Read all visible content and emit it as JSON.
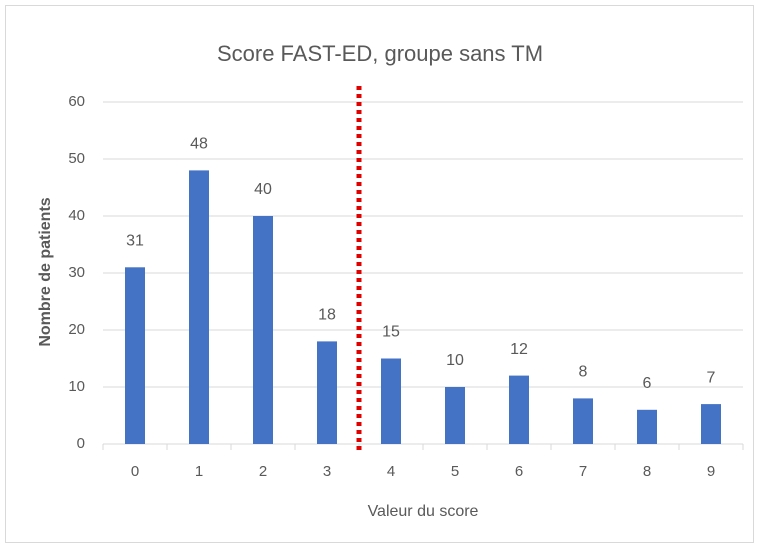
{
  "chart_data": {
    "type": "bar",
    "title": "Score FAST-ED, groupe sans TM",
    "x_label": "Valeur du score",
    "y_label": "Nombre de patients",
    "categories": [
      "0",
      "1",
      "2",
      "3",
      "4",
      "5",
      "6",
      "7",
      "8",
      "9"
    ],
    "values": [
      31,
      48,
      40,
      18,
      15,
      10,
      12,
      8,
      6,
      7
    ],
    "color": "#4472c4",
    "ylim": [
      0,
      60
    ],
    "yticks": [
      0,
      10,
      20,
      30,
      40,
      50,
      60
    ],
    "grid": true,
    "data_labels": true,
    "reference_line": {
      "x": 3.5,
      "color": "#e00000",
      "style": "dotted"
    }
  }
}
